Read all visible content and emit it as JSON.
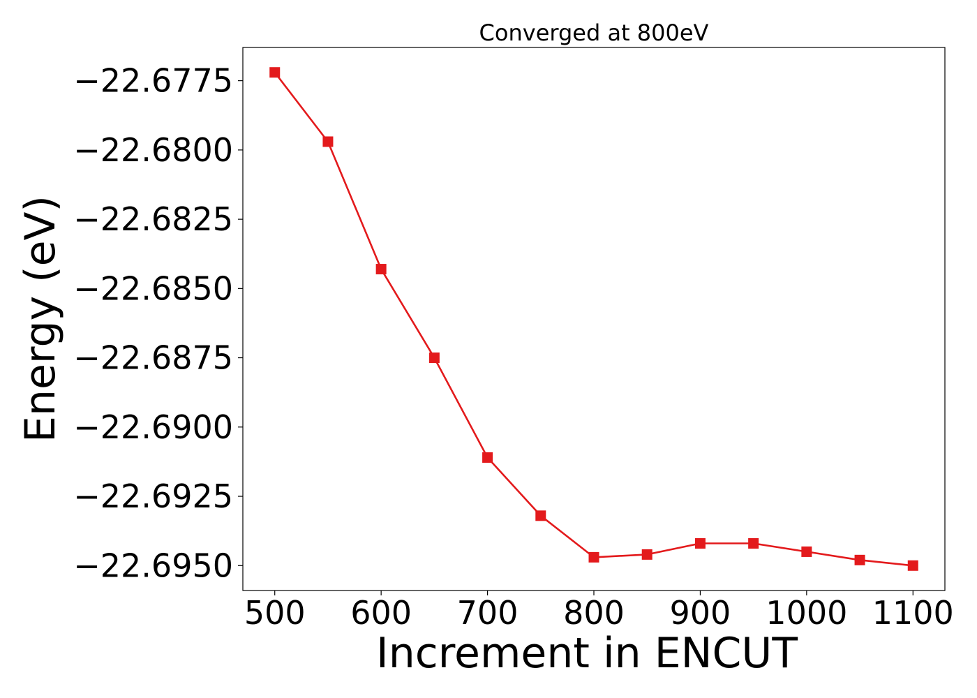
{
  "chart_data": {
    "type": "line",
    "title": "Converged at 800eV",
    "xlabel": "Increment in ENCUT",
    "ylabel": "Energy (eV)",
    "x": [
      500,
      550,
      600,
      650,
      700,
      750,
      800,
      850,
      900,
      950,
      1000,
      1050,
      1100
    ],
    "series": [
      {
        "values": [
          -22.6772,
          -22.6797,
          -22.6843,
          -22.6875,
          -22.6911,
          -22.6932,
          -22.6947,
          -22.6946,
          -22.6942,
          -22.6942,
          -22.6945,
          -22.6948,
          -22.695
        ],
        "color": "#e31a1c",
        "marker": "square"
      }
    ],
    "xticks": [
      500,
      600,
      700,
      800,
      900,
      1000,
      1100
    ],
    "xtick_labels": [
      "500",
      "600",
      "700",
      "800",
      "900",
      "1000",
      "1100"
    ],
    "yticks": [
      -22.6775,
      -22.68,
      -22.6825,
      -22.685,
      -22.6875,
      -22.69,
      -22.6925,
      -22.695
    ],
    "ytick_labels": [
      "−22.6775",
      "−22.6800",
      "−22.6825",
      "−22.6850",
      "−22.6875",
      "−22.6900",
      "−22.6925",
      "−22.6950"
    ],
    "xlim": [
      470,
      1130
    ],
    "ylim": [
      -22.6959,
      -22.6763
    ],
    "grid": false,
    "legend": "none"
  }
}
